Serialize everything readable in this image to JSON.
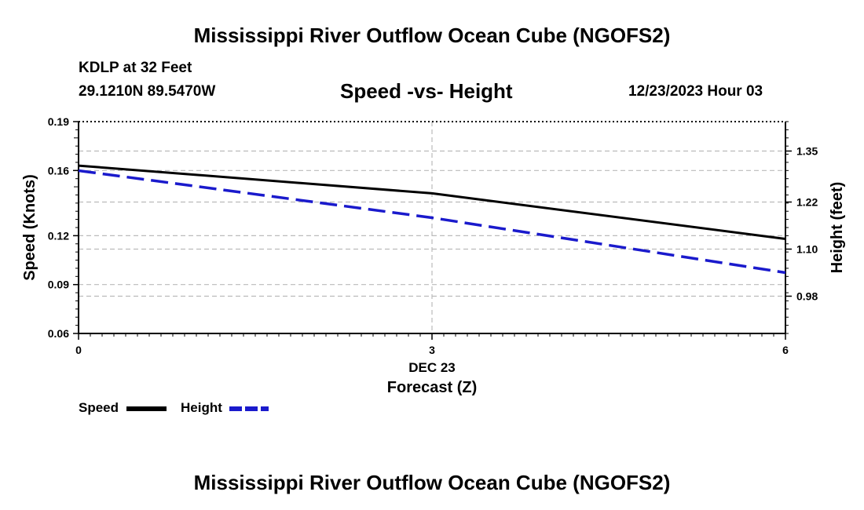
{
  "header": {
    "title": "Mississippi River Outflow Ocean Cube (NGOFS2)",
    "station": "KDLP at 32 Feet",
    "coords": "29.1210N  89.5470W",
    "subtitle": "Speed -vs- Height",
    "datetime": "12/23/2023 Hour 03"
  },
  "footer": {
    "title": "Mississippi River Outflow Ocean Cube (NGOFS2)"
  },
  "colors": {
    "speed": "#000000",
    "height": "#1a1acc",
    "grid": "#bbbbbb"
  },
  "chart_data": {
    "type": "line",
    "x": [
      0,
      6
    ],
    "xlim": [
      0,
      6
    ],
    "xticks": [
      {
        "v": 0,
        "label": "0"
      },
      {
        "v": 3,
        "label": "3"
      },
      {
        "v": 6,
        "label": "6"
      }
    ],
    "xdate": "DEC 23",
    "xlabel": "Forecast (Z)",
    "y_left": {
      "label": "Speed (Knots)",
      "lim": [
        0.06,
        0.19
      ],
      "ticks": [
        {
          "v": 0.06,
          "label": "0.06"
        },
        {
          "v": 0.09,
          "label": "0.09"
        },
        {
          "v": 0.12,
          "label": "0.12"
        },
        {
          "v": 0.16,
          "label": "0.16"
        },
        {
          "v": 0.19,
          "label": "0.19"
        }
      ]
    },
    "y_right": {
      "label": "Height (feet)",
      "lim": [
        0.885,
        1.425
      ],
      "ticks": [
        {
          "v": 0.98,
          "label": "0.98"
        },
        {
          "v": 1.1,
          "label": "1.10"
        },
        {
          "v": 1.22,
          "label": "1.22"
        },
        {
          "v": 1.35,
          "label": "1.35"
        }
      ]
    },
    "series": [
      {
        "name": "Speed",
        "axis": "left",
        "style": "solid",
        "x": [
          0,
          3,
          6
        ],
        "values": [
          0.163,
          0.146,
          0.118
        ]
      },
      {
        "name": "Height",
        "axis": "right",
        "style": "dashed",
        "x": [
          0,
          3,
          6
        ],
        "values": [
          1.3,
          1.18,
          1.04
        ]
      }
    ],
    "legend": [
      {
        "name": "Speed"
      },
      {
        "name": "Height"
      }
    ],
    "grid": true
  }
}
